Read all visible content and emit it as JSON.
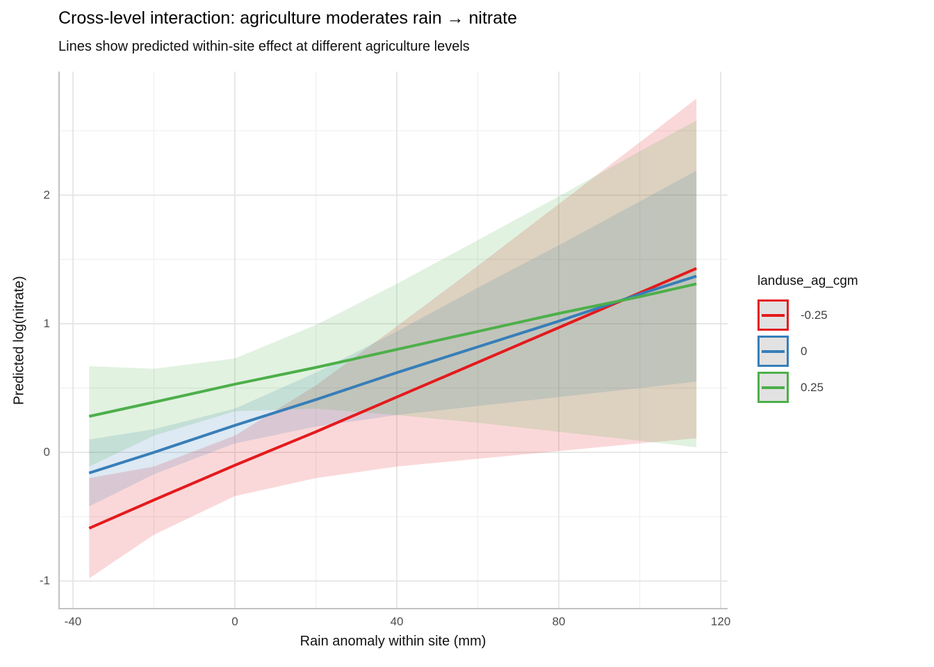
{
  "chart_data": {
    "type": "line",
    "title": "Cross-level interaction: agriculture moderates rain → nitrate",
    "subtitle": "Lines show predicted within-site effect at different agriculture levels",
    "xlabel": "Rain anomaly within site (mm)",
    "ylabel": "Predicted log(nitrate)",
    "xlim": [
      -43.6,
      121.7
    ],
    "ylim": [
      -1.22,
      2.96
    ],
    "x_ticks": [
      -40,
      0,
      40,
      80,
      120
    ],
    "x_tick_labels": [
      "-40",
      "0",
      "40",
      "80",
      "120"
    ],
    "x_minor_ticks": [
      -20,
      20,
      60,
      100
    ],
    "y_ticks": [
      -1,
      0,
      1,
      2
    ],
    "y_tick_labels": [
      "-1",
      "0",
      "1",
      "2"
    ],
    "y_minor_ticks": [
      -0.5,
      0.5,
      1.5,
      2.5
    ],
    "grid": true,
    "legend_position": "right",
    "legend_title": "landuse_ag_cgm",
    "ribbon_opacity": 0.17,
    "x": [
      -36,
      -20,
      0,
      20,
      40,
      60,
      80,
      100,
      114
    ],
    "series": [
      {
        "name": "-0.25",
        "color": "#E41A1C",
        "values": [
          -0.59,
          -0.37,
          -0.1,
          0.16,
          0.43,
          0.7,
          0.97,
          1.24,
          1.43
        ],
        "ci_lower": [
          -0.98,
          -0.64,
          -0.34,
          -0.2,
          -0.11,
          -0.05,
          0.01,
          0.07,
          0.11
        ],
        "ci_upper": [
          -0.2,
          -0.11,
          0.13,
          0.52,
          0.98,
          1.45,
          1.93,
          2.41,
          2.75
        ]
      },
      {
        "name": "0",
        "color": "#377EB8",
        "values": [
          -0.16,
          0.0,
          0.21,
          0.41,
          0.62,
          0.82,
          1.02,
          1.23,
          1.37
        ],
        "ci_lower": [
          -0.42,
          -0.17,
          0.07,
          0.2,
          0.29,
          0.36,
          0.43,
          0.5,
          0.55
        ],
        "ci_upper": [
          0.1,
          0.18,
          0.34,
          0.62,
          0.94,
          1.28,
          1.61,
          1.95,
          2.19
        ]
      },
      {
        "name": "0.25",
        "color": "#4DAF4A",
        "values": [
          0.28,
          0.39,
          0.53,
          0.66,
          0.8,
          0.94,
          1.08,
          1.21,
          1.31
        ],
        "ci_lower": [
          -0.11,
          0.13,
          0.32,
          0.34,
          0.29,
          0.23,
          0.16,
          0.09,
          0.04
        ],
        "ci_upper": [
          0.67,
          0.65,
          0.73,
          0.99,
          1.31,
          1.65,
          1.99,
          2.34,
          2.58
        ]
      }
    ],
    "style": {
      "grid_major_color": "#e2e2e2",
      "grid_minor_color": "#efefef",
      "axis_line_color": "#c2c2c2",
      "line_width": 4
    }
  }
}
